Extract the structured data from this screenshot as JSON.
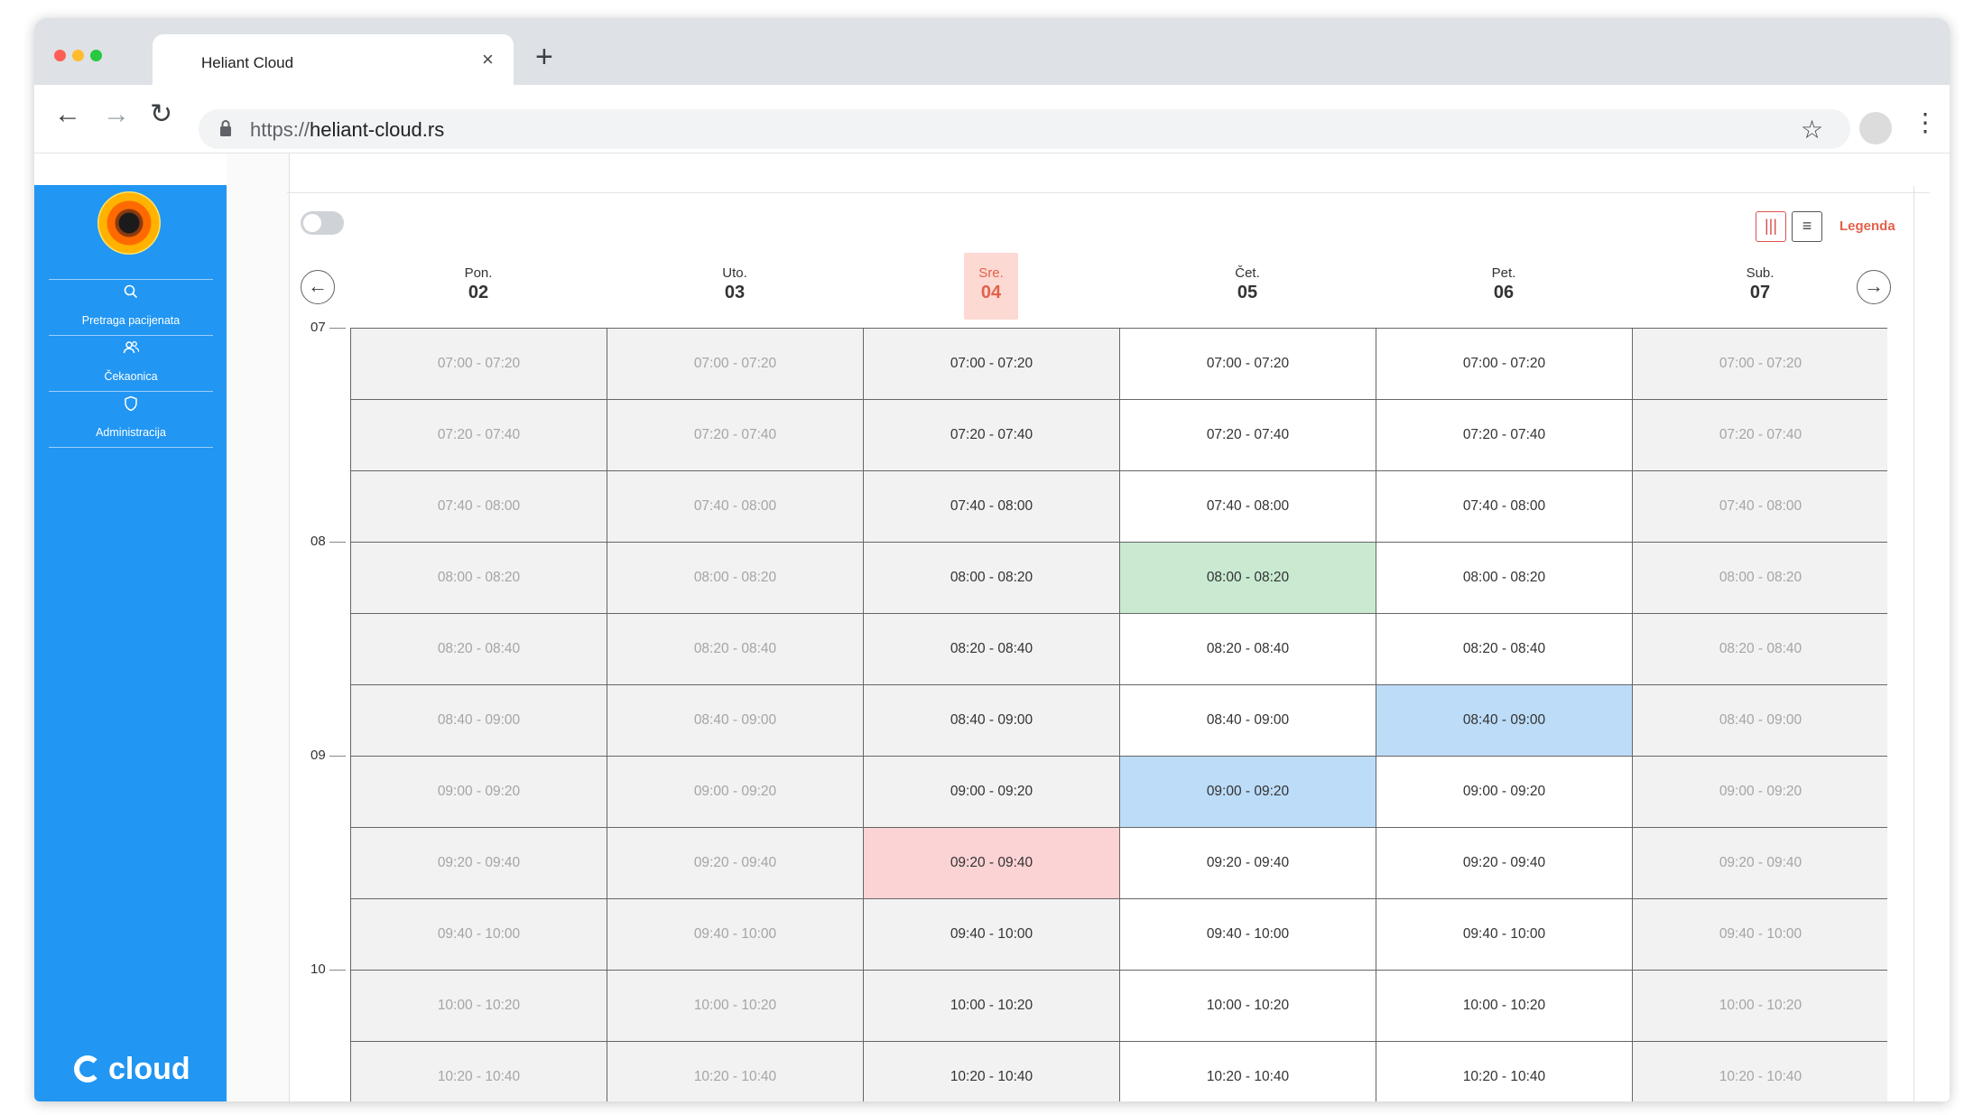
{
  "browser": {
    "tab_title": "Heliant Cloud",
    "tab_close": "×",
    "new_tab": "+",
    "url_scheme": "https://",
    "url_host": "heliant-cloud.rs",
    "traffic_colors": [
      "#ff5f57",
      "#febc2e",
      "#28c840"
    ]
  },
  "sidebar": {
    "color": "#2196f3",
    "items": [
      {
        "label": "Pretraga pacijenata",
        "icon": "search-icon"
      },
      {
        "label": "Čekaonica",
        "icon": "users-icon"
      },
      {
        "label": "Administracija",
        "icon": "shield-icon"
      }
    ],
    "brand": "cloud"
  },
  "toolbar": {
    "legend_label": "Legenda",
    "view_column_icon": "|||",
    "view_list_icon": "≡"
  },
  "calendar": {
    "days": [
      {
        "name": "Pon.",
        "date": "02",
        "state": "off"
      },
      {
        "name": "Uto.",
        "date": "03",
        "state": "off"
      },
      {
        "name": "Sre.",
        "date": "04",
        "state": "today"
      },
      {
        "name": "Čet.",
        "date": "05",
        "state": "on"
      },
      {
        "name": "Pet.",
        "date": "06",
        "state": "on"
      },
      {
        "name": "Sub.",
        "date": "07",
        "state": "off"
      }
    ],
    "hours": [
      "07",
      "08",
      "09",
      "10"
    ],
    "slots": [
      "07:00 - 07:20",
      "07:20 - 07:40",
      "07:40 - 08:00",
      "08:00 - 08:20",
      "08:20 - 08:40",
      "08:40 - 09:00",
      "09:00 - 09:20",
      "09:20 - 09:40",
      "09:40 - 10:00",
      "10:00 - 10:20",
      "10:20 - 10:40"
    ],
    "highlights": [
      {
        "day": 3,
        "slot": 3,
        "status": "green"
      },
      {
        "day": 4,
        "slot": 5,
        "status": "blue"
      },
      {
        "day": 3,
        "slot": 6,
        "status": "blue"
      },
      {
        "day": 2,
        "slot": 7,
        "status": "red"
      }
    ],
    "status_colors": {
      "green": "#c9ead1",
      "blue": "#bcdcf8",
      "red": "#fbd3d5",
      "today": "#e2614a"
    }
  }
}
